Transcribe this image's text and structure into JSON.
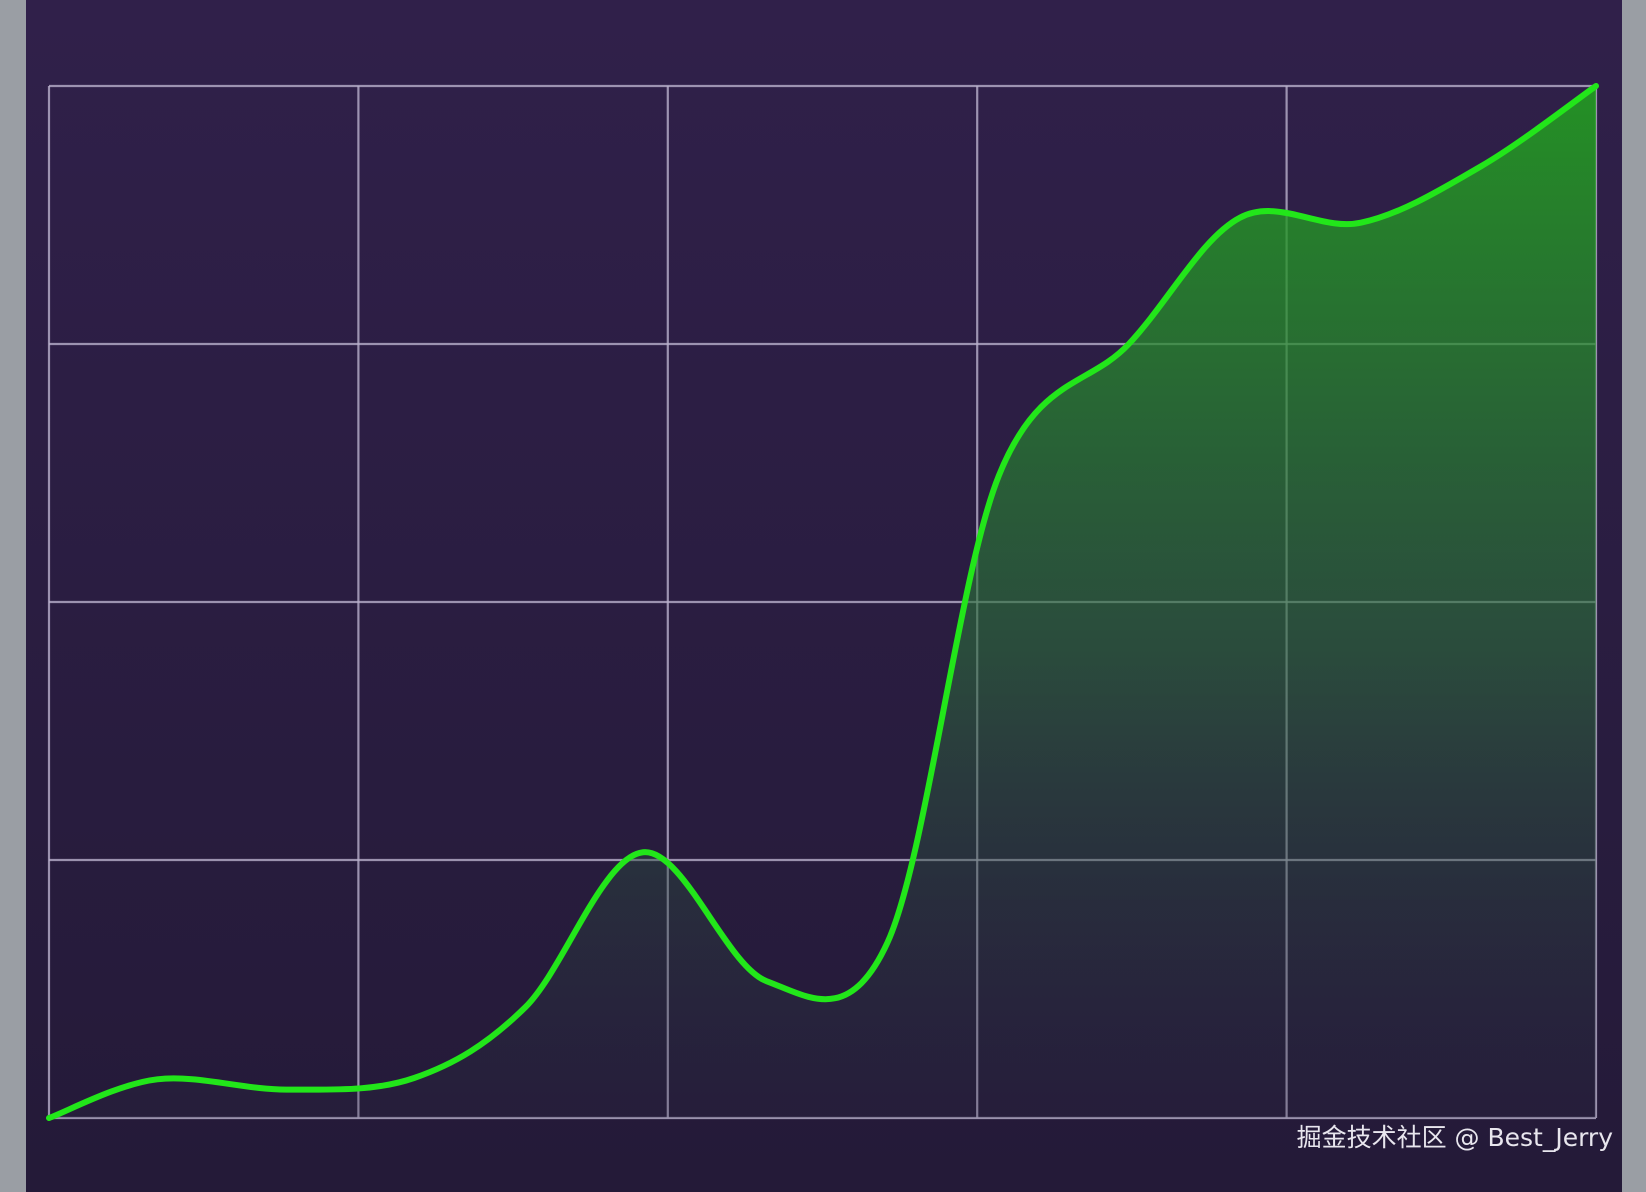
{
  "chart_data": {
    "type": "area",
    "x": [
      0,
      0.35,
      0.77,
      1.18,
      1.54,
      1.92,
      2.32,
      2.71,
      3.07,
      3.49,
      3.85,
      4.24,
      4.63,
      5
    ],
    "values": [
      0,
      0.15,
      0.11,
      0.155,
      0.43,
      1.03,
      0.53,
      0.68,
      2.49,
      3.0,
      3.49,
      3.47,
      3.69,
      4.0
    ],
    "color": "#22e61a",
    "xlim": [
      0,
      5
    ],
    "xticks": [
      0,
      1,
      2,
      3,
      4,
      5
    ],
    "ylim": [
      0,
      4
    ],
    "yticks": [
      0,
      1,
      2,
      3,
      4
    ],
    "grid": true
  },
  "watermark": "掘金技术社区 @ Best_Jerry"
}
